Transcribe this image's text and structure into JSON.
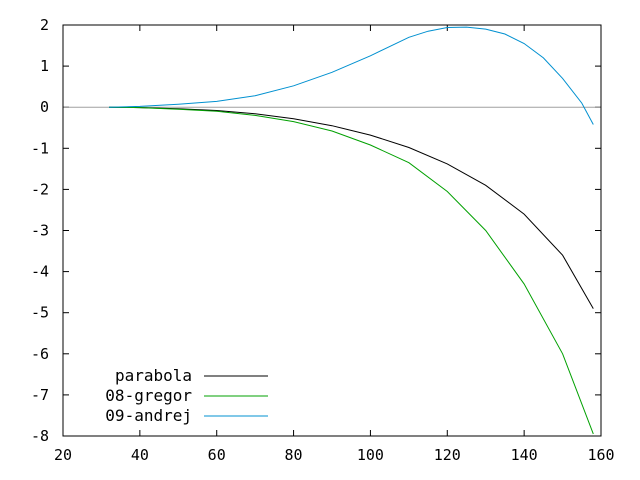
{
  "chart_data": {
    "type": "line",
    "title": "",
    "xlabel": "",
    "ylabel": "",
    "xlim": [
      20,
      160
    ],
    "ylim": [
      -8,
      2
    ],
    "x_ticks": [
      "20",
      "40",
      "60",
      "80",
      "100",
      "120",
      "140",
      "160"
    ],
    "y_ticks": [
      "2",
      "1",
      "0",
      "-1",
      "-2",
      "-3",
      "-4",
      "-5",
      "-6",
      "-7",
      "-8"
    ],
    "zero_line": true,
    "grid": false,
    "legend_position": "bottom-left",
    "series": [
      {
        "name": "parabola",
        "color": "#000000",
        "x": [
          32,
          40,
          50,
          60,
          70,
          80,
          90,
          100,
          110,
          120,
          130,
          140,
          150,
          158
        ],
        "y": [
          0,
          -0.01,
          -0.04,
          -0.08,
          -0.16,
          -0.28,
          -0.45,
          -0.68,
          -0.98,
          -1.38,
          -1.9,
          -2.6,
          -3.6,
          -4.9
        ]
      },
      {
        "name": "08-gregor",
        "color": "#00a000",
        "x": [
          32,
          40,
          50,
          60,
          70,
          80,
          90,
          100,
          110,
          120,
          130,
          140,
          150,
          158
        ],
        "y": [
          0,
          -0.01,
          -0.05,
          -0.1,
          -0.2,
          -0.35,
          -0.58,
          -0.92,
          -1.35,
          -2.05,
          -3.0,
          -4.3,
          -6.0,
          -7.95
        ]
      },
      {
        "name": "09-andrej",
        "color": "#0090d0",
        "x": [
          32,
          40,
          50,
          60,
          70,
          80,
          90,
          100,
          110,
          115,
          120,
          125,
          130,
          135,
          140,
          145,
          150,
          155,
          158
        ],
        "y": [
          0,
          0.02,
          0.07,
          0.14,
          0.28,
          0.52,
          0.85,
          1.25,
          1.7,
          1.85,
          1.94,
          1.95,
          1.9,
          1.78,
          1.55,
          1.2,
          0.7,
          0.1,
          -0.42
        ]
      }
    ]
  }
}
